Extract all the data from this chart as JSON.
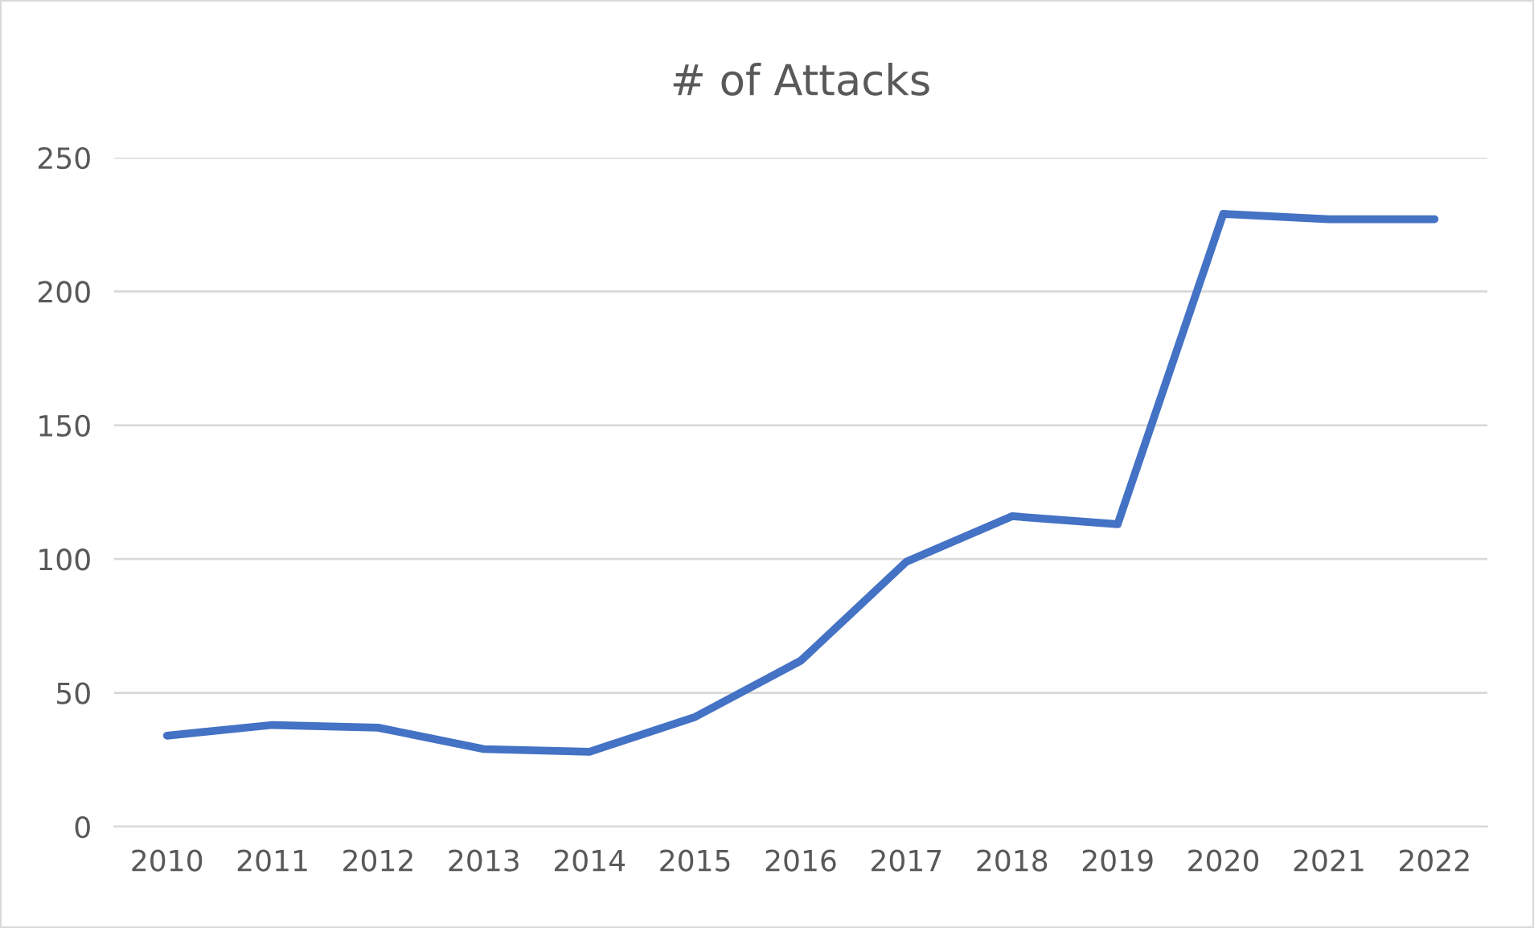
{
  "chart_data": {
    "type": "line",
    "title": "# of Attacks",
    "categories": [
      "2010",
      "2011",
      "2012",
      "2013",
      "2014",
      "2015",
      "2016",
      "2017",
      "2018",
      "2019",
      "2020",
      "2021",
      "2022"
    ],
    "series": [
      {
        "color": "#4472c4",
        "values": [
          34,
          38,
          37,
          29,
          28,
          41,
          62,
          99,
          116,
          113,
          229,
          227,
          227
        ]
      }
    ],
    "ylim": [
      0,
      250
    ],
    "yticks": [
      0,
      50,
      100,
      150,
      200,
      250
    ],
    "grid": "y",
    "marker": "none",
    "line_style": "solid"
  }
}
